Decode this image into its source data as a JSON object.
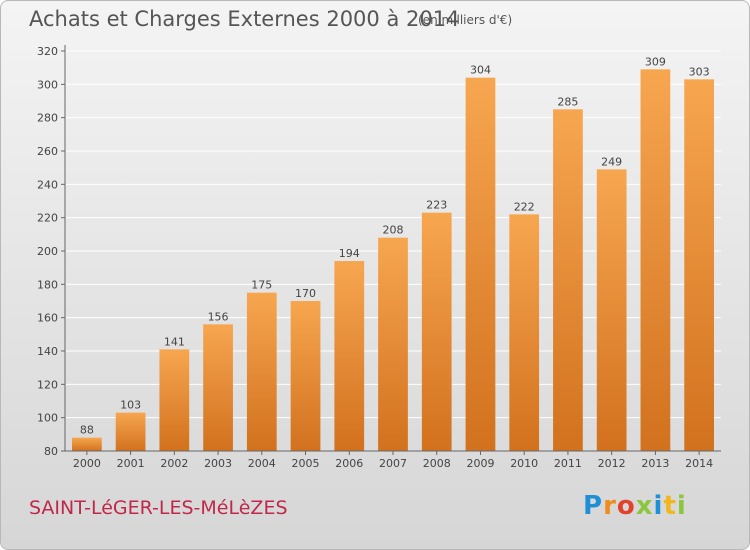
{
  "header": {
    "title": "Achats et Charges Externes 2000 à 2014",
    "subtitle": "(en milliers d'€)"
  },
  "footer": {
    "commune": "SAINT-LéGER-LES-MéLèZES",
    "logo": "Proxiti"
  },
  "colors": {
    "bar_light": "#f7a650",
    "bar_dark": "#d2711e",
    "commune_text": "#c0284a",
    "logo_letters": [
      "#1f8fd6",
      "#f08c1e",
      "#e0422a",
      "#8cc63f",
      "#1f8fd6",
      "#f0b81e",
      "#8cc63f"
    ]
  },
  "chart_data": {
    "type": "bar",
    "categories": [
      "2000",
      "2001",
      "2002",
      "2003",
      "2004",
      "2005",
      "2006",
      "2007",
      "2008",
      "2009",
      "2010",
      "2011",
      "2012",
      "2013",
      "2014"
    ],
    "values": [
      88,
      103,
      141,
      156,
      175,
      170,
      194,
      208,
      223,
      304,
      222,
      285,
      249,
      309,
      303
    ],
    "ylim": [
      80,
      320
    ],
    "yticks": [
      80,
      100,
      120,
      140,
      160,
      180,
      200,
      220,
      240,
      260,
      280,
      300,
      320
    ],
    "grid": true,
    "legend": "none"
  }
}
